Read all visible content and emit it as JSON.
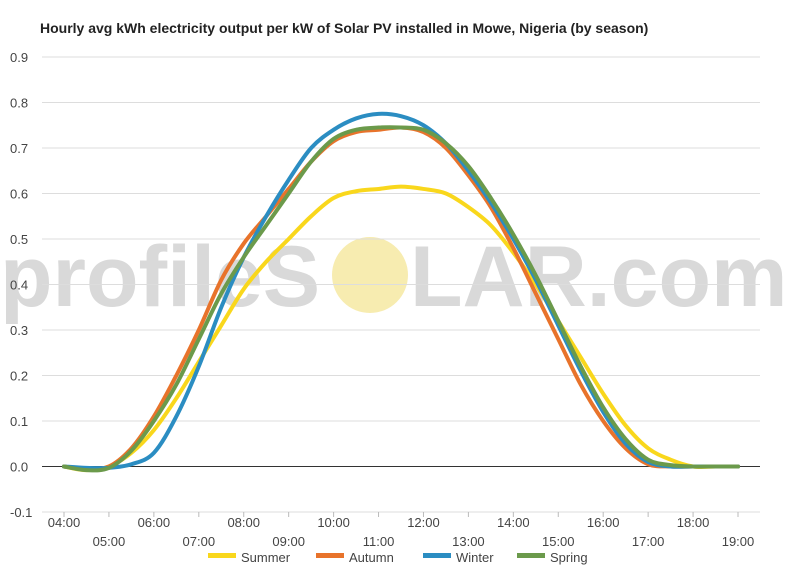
{
  "watermark": {
    "text_left": "profileS",
    "text_right": "LAR.com",
    "sun_color": "#f7ecb0",
    "text_color": "#d9d9d9"
  },
  "chart_data": {
    "type": "line",
    "title": "Hourly avg kWh electricity output per kW of Solar PV installed in Mowe, Nigeria (by season)",
    "xlabel": "",
    "ylabel": "",
    "x_ticks": [
      "04:00",
      "05:00",
      "06:00",
      "07:00",
      "08:00",
      "09:00",
      "10:00",
      "11:00",
      "12:00",
      "13:00",
      "14:00",
      "15:00",
      "16:00",
      "17:00",
      "18:00",
      "19:00"
    ],
    "x_range": [
      4,
      19
    ],
    "y_ticks": [
      "0.9",
      "0.8",
      "0.7",
      "0.6",
      "0.5",
      "0.4",
      "0.3",
      "0.2",
      "0.1",
      "0.0",
      "-0.1"
    ],
    "ylim": [
      -0.1,
      0.9
    ],
    "grid": true,
    "legend": "bottom",
    "series": [
      {
        "name": "Summer",
        "color": "#f9d71c",
        "points": [
          [
            4,
            0.0
          ],
          [
            4.5,
            -0.008
          ],
          [
            5,
            0.0
          ],
          [
            5.5,
            0.03
          ],
          [
            6,
            0.08
          ],
          [
            6.5,
            0.15
          ],
          [
            7,
            0.23
          ],
          [
            7.5,
            0.31
          ],
          [
            8,
            0.39
          ],
          [
            8.5,
            0.45
          ],
          [
            9,
            0.5
          ],
          [
            9.5,
            0.55
          ],
          [
            10,
            0.59
          ],
          [
            10.5,
            0.605
          ],
          [
            11,
            0.61
          ],
          [
            11.5,
            0.615
          ],
          [
            12,
            0.61
          ],
          [
            12.5,
            0.6
          ],
          [
            13,
            0.57
          ],
          [
            13.5,
            0.53
          ],
          [
            14,
            0.47
          ],
          [
            14.5,
            0.4
          ],
          [
            15,
            0.32
          ],
          [
            15.5,
            0.24
          ],
          [
            16,
            0.16
          ],
          [
            16.5,
            0.09
          ],
          [
            17,
            0.04
          ],
          [
            17.5,
            0.015
          ],
          [
            18,
            0.0
          ],
          [
            18.5,
            0.0
          ],
          [
            19,
            0.0
          ]
        ]
      },
      {
        "name": "Autumn",
        "color": "#e8732b",
        "points": [
          [
            4,
            0.0
          ],
          [
            4.5,
            -0.005
          ],
          [
            5,
            0.0
          ],
          [
            5.5,
            0.04
          ],
          [
            6,
            0.11
          ],
          [
            6.5,
            0.2
          ],
          [
            7,
            0.3
          ],
          [
            7.5,
            0.41
          ],
          [
            8,
            0.49
          ],
          [
            8.5,
            0.55
          ],
          [
            9,
            0.61
          ],
          [
            9.5,
            0.67
          ],
          [
            10,
            0.715
          ],
          [
            10.5,
            0.735
          ],
          [
            11,
            0.74
          ],
          [
            11.5,
            0.745
          ],
          [
            12,
            0.735
          ],
          [
            12.5,
            0.7
          ],
          [
            13,
            0.64
          ],
          [
            13.5,
            0.57
          ],
          [
            14,
            0.48
          ],
          [
            14.5,
            0.38
          ],
          [
            15,
            0.28
          ],
          [
            15.5,
            0.18
          ],
          [
            16,
            0.1
          ],
          [
            16.5,
            0.04
          ],
          [
            17,
            0.005
          ],
          [
            17.5,
            0.0
          ],
          [
            18,
            0.0
          ],
          [
            18.5,
            0.0
          ],
          [
            19,
            0.0
          ]
        ]
      },
      {
        "name": "Winter",
        "color": "#2b8dc2",
        "points": [
          [
            4,
            0.0
          ],
          [
            4.5,
            -0.003
          ],
          [
            5,
            -0.003
          ],
          [
            5.5,
            0.005
          ],
          [
            6,
            0.03
          ],
          [
            6.5,
            0.11
          ],
          [
            7,
            0.22
          ],
          [
            7.5,
            0.35
          ],
          [
            8,
            0.46
          ],
          [
            8.5,
            0.55
          ],
          [
            9,
            0.63
          ],
          [
            9.5,
            0.7
          ],
          [
            10,
            0.74
          ],
          [
            10.5,
            0.765
          ],
          [
            11,
            0.775
          ],
          [
            11.5,
            0.77
          ],
          [
            12,
            0.75
          ],
          [
            12.5,
            0.71
          ],
          [
            13,
            0.65
          ],
          [
            13.5,
            0.58
          ],
          [
            14,
            0.5
          ],
          [
            14.5,
            0.41
          ],
          [
            15,
            0.31
          ],
          [
            15.5,
            0.21
          ],
          [
            16,
            0.12
          ],
          [
            16.5,
            0.05
          ],
          [
            17,
            0.01
          ],
          [
            17.5,
            0.0
          ],
          [
            18,
            0.0
          ],
          [
            18.5,
            0.0
          ],
          [
            19,
            0.0
          ]
        ]
      },
      {
        "name": "Spring",
        "color": "#6b9a4b",
        "points": [
          [
            4,
            0.0
          ],
          [
            4.5,
            -0.008
          ],
          [
            5,
            -0.003
          ],
          [
            5.5,
            0.035
          ],
          [
            6,
            0.1
          ],
          [
            6.5,
            0.18
          ],
          [
            7,
            0.28
          ],
          [
            7.5,
            0.38
          ],
          [
            8,
            0.46
          ],
          [
            8.5,
            0.53
          ],
          [
            9,
            0.6
          ],
          [
            9.5,
            0.67
          ],
          [
            10,
            0.72
          ],
          [
            10.5,
            0.74
          ],
          [
            11,
            0.745
          ],
          [
            11.5,
            0.745
          ],
          [
            12,
            0.74
          ],
          [
            12.5,
            0.71
          ],
          [
            13,
            0.66
          ],
          [
            13.5,
            0.59
          ],
          [
            14,
            0.51
          ],
          [
            14.5,
            0.42
          ],
          [
            15,
            0.32
          ],
          [
            15.5,
            0.22
          ],
          [
            16,
            0.13
          ],
          [
            16.5,
            0.06
          ],
          [
            17,
            0.015
          ],
          [
            17.5,
            0.003
          ],
          [
            18,
            0.0
          ],
          [
            18.5,
            0.0
          ],
          [
            19,
            0.0
          ]
        ]
      }
    ]
  }
}
